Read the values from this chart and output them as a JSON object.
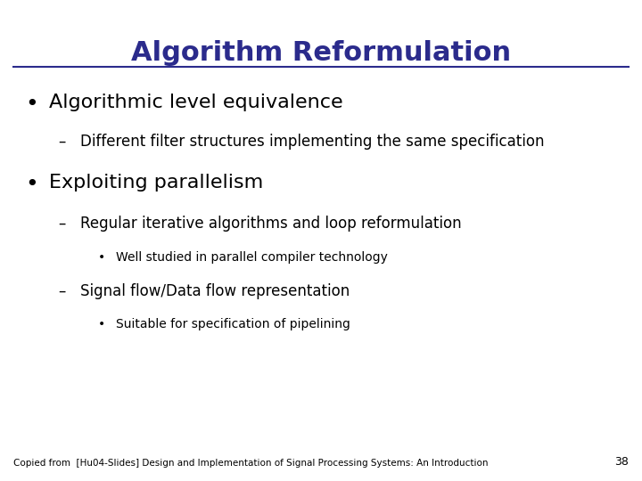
{
  "title": "Algorithm Reformulation",
  "title_color": "#2B2B8C",
  "title_fontsize": 22,
  "background_color": "#FFFFFF",
  "line_color": "#2B2B8C",
  "bullet1": "Algorithmic level equivalence",
  "bullet1_fontsize": 16,
  "bullet1_color": "#000000",
  "sub1": "Different filter structures implementing the same specification",
  "sub1_fontsize": 12,
  "sub1_color": "#000000",
  "bullet2": "Exploiting parallelism",
  "bullet2_fontsize": 16,
  "bullet2_color": "#000000",
  "sub2a": "Regular iterative algorithms and loop reformulation",
  "sub2a_fontsize": 12,
  "sub2a_color": "#000000",
  "sub2a_sub": "Well studied in parallel compiler technology",
  "sub2a_sub_fontsize": 10,
  "sub2a_sub_color": "#000000",
  "sub2b": "Signal flow/Data flow representation",
  "sub2b_fontsize": 12,
  "sub2b_color": "#000000",
  "sub2b_sub": "Suitable for specification of pipelining",
  "sub2b_sub_fontsize": 10,
  "sub2b_sub_color": "#000000",
  "footer": "Copied from  [Hu04-Slides] Design and Implementation of Signal Processing Systems: An Introduction",
  "footer_fontsize": 7.5,
  "footer_color": "#000000",
  "page_number": "38",
  "page_number_fontsize": 9,
  "page_number_color": "#000000"
}
